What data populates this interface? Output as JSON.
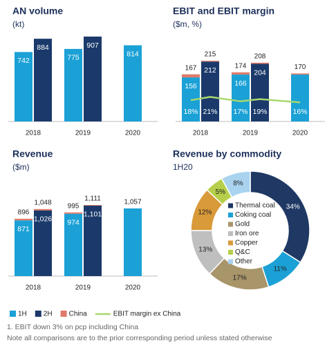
{
  "chart_data": [
    {
      "type": "bar",
      "title": "AN volume",
      "subtitle": "(kt)",
      "categories": [
        "2018",
        "2019",
        "2020"
      ],
      "series": [
        {
          "color": "#1ba1d6",
          "values": [
            742,
            775,
            814
          ]
        },
        {
          "color": "#1b3a6b",
          "values": [
            884,
            907,
            null
          ]
        }
      ]
    },
    {
      "type": "bar",
      "title": "EBIT and EBIT margin",
      "subtitle": "($m, %)",
      "categories": [
        "2018",
        "2019",
        "2020"
      ],
      "china_color": "#e07a6a",
      "series": [
        {
          "color": "#1ba1d6",
          "values": [
            156,
            166,
            166
          ],
          "value_labels": [
            "156",
            "166",
            null
          ],
          "china": [
            11,
            8,
            4
          ],
          "totals": [
            167,
            174,
            170
          ],
          "total_labels": [
            "167",
            "174",
            "170"
          ]
        },
        {
          "color": "#1b3a6b",
          "values": [
            212,
            204,
            null
          ],
          "value_labels": [
            "212",
            "204",
            null
          ],
          "china": [
            3,
            4,
            null
          ],
          "totals": [
            215,
            208,
            null
          ],
          "total_labels": [
            "215",
            "208",
            null
          ]
        }
      ],
      "margin": {
        "color": "#a8d86e",
        "values": [
          18,
          21,
          17,
          19,
          16
        ],
        "value_labels": [
          "18%",
          "21%",
          "17%",
          "19%",
          "16%"
        ]
      }
    },
    {
      "type": "bar",
      "title": "Revenue",
      "subtitle": "($m)",
      "categories": [
        "2018",
        "2019",
        "2020"
      ],
      "china_color": "#e07a6a",
      "series": [
        {
          "color": "#1ba1d6",
          "values": [
            871,
            974,
            1057
          ],
          "value_labels": [
            "871",
            "974",
            null
          ],
          "china": [
            25,
            21,
            null
          ],
          "totals": [
            896,
            995,
            1057
          ],
          "total_labels": [
            "896",
            "995",
            "1,057"
          ]
        },
        {
          "color": "#1b3a6b",
          "values": [
            1026,
            1101,
            null
          ],
          "value_labels": [
            "1,026",
            "1,101",
            null
          ],
          "china": [
            22,
            10,
            null
          ],
          "totals": [
            1048,
            1111,
            null
          ],
          "total_labels": [
            "1,048",
            "1,111",
            null
          ]
        }
      ]
    },
    {
      "type": "pie",
      "title": "Revenue by commodity",
      "subtitle": "1H20",
      "categories": [
        "Thermal coal",
        "Coking coal",
        "Gold",
        "Iron ore",
        "Copper",
        "Q&C",
        "Other"
      ],
      "values": [
        34,
        11,
        17,
        13,
        12,
        5,
        8
      ],
      "value_labels": [
        "34%",
        "11%",
        "17%",
        "13%",
        "12%",
        "5%",
        "8%"
      ],
      "colors": [
        "#1f3864",
        "#1ba1d6",
        "#a8956a",
        "#bfbfbf",
        "#d99a3a",
        "#b5cf4a",
        "#a9d3ef"
      ]
    }
  ],
  "legend": [
    {
      "name": "1H",
      "color": "#1ba1d6"
    },
    {
      "name": "2H",
      "color": "#1b3a6b"
    },
    {
      "name": "China",
      "color": "#e07a6a"
    },
    {
      "name": "EBIT margin ex China",
      "color": "#a8d86e"
    }
  ],
  "footnotes": [
    "1.   EBIT down 3% on pcp including China",
    "Note all comparisons are to the prior corresponding period unless stated otherwise"
  ]
}
